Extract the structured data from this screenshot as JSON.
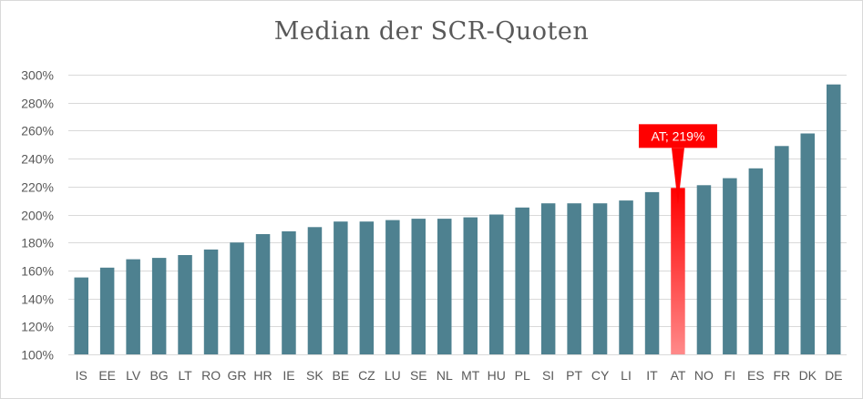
{
  "chart_data": {
    "type": "bar",
    "title": "Median der SCR-Quoten",
    "xlabel": "",
    "ylabel": "",
    "ylim": [
      1.0,
      3.0
    ],
    "ytick_step": 0.2,
    "grid": true,
    "legend": "none",
    "categories": [
      "IS",
      "EE",
      "LV",
      "BG",
      "LT",
      "RO",
      "GR",
      "HR",
      "IE",
      "SK",
      "BE",
      "CZ",
      "LU",
      "SE",
      "NL",
      "MT",
      "HU",
      "PL",
      "SI",
      "PT",
      "CY",
      "LI",
      "IT",
      "AT",
      "NO",
      "FI",
      "ES",
      "FR",
      "DK",
      "DE"
    ],
    "values": [
      1.55,
      1.62,
      1.68,
      1.69,
      1.71,
      1.75,
      1.8,
      1.86,
      1.88,
      1.91,
      1.95,
      1.95,
      1.96,
      1.97,
      1.97,
      1.98,
      2.0,
      2.05,
      2.08,
      2.08,
      2.08,
      2.1,
      2.16,
      2.19,
      2.21,
      2.26,
      2.33,
      2.49,
      2.58,
      2.93
    ],
    "highlight": {
      "category": "AT",
      "label": "AT; 219%"
    },
    "colors": {
      "bar": "#4e8190",
      "highlight": "#ff0000",
      "highlight_gradient_end": "#ff8a8a",
      "grid": "#d9d9d9"
    }
  }
}
